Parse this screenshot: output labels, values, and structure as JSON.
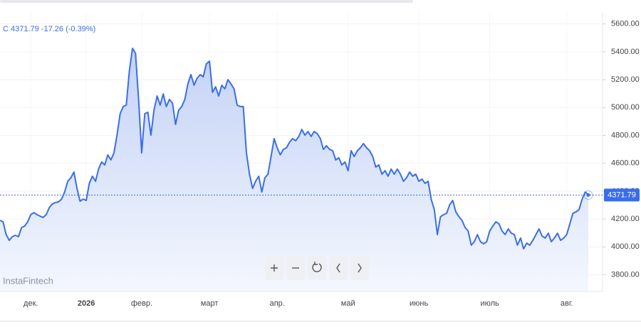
{
  "chart_data": {
    "type": "area",
    "header": {
      "symbol": "C",
      "price": "4371.79",
      "change": "-17.26 (-0.39%)"
    },
    "watermark": "InstaFintech",
    "color": "#3a6ee8",
    "xlim": [
      0,
      191
    ],
    "xticks": [
      {
        "value": 10,
        "label": "дек."
      },
      {
        "value": 28,
        "label": "2026"
      },
      {
        "value": 46,
        "label": "февр."
      },
      {
        "value": 68,
        "label": "март"
      },
      {
        "value": 90,
        "label": "апр."
      },
      {
        "value": 113,
        "label": "май"
      },
      {
        "value": 136,
        "label": "июнь"
      },
      {
        "value": 159,
        "label": "июль"
      },
      {
        "value": 184,
        "label": "авг."
      }
    ],
    "ylim": [
      3680,
      5680
    ],
    "yticks": [
      {
        "value": 3800,
        "label": "3800.00"
      },
      {
        "value": 4000,
        "label": "4000.00"
      },
      {
        "value": 4200,
        "label": "4200.00"
      },
      {
        "value": 4400,
        "label": "4400.00"
      },
      {
        "value": 4600,
        "label": "4600.00"
      },
      {
        "value": 4800,
        "label": "4800.00"
      },
      {
        "value": 5000,
        "label": "5000.00"
      },
      {
        "value": 5200,
        "label": "5200.00"
      },
      {
        "value": 5400,
        "label": "5400.00"
      },
      {
        "value": 5600,
        "label": "5600.00"
      }
    ],
    "grid": true,
    "values": [
      4190,
      4180,
      4088,
      4047,
      4073,
      4083,
      4073,
      4139,
      4149,
      4180,
      4231,
      4246,
      4231,
      4221,
      4211,
      4231,
      4282,
      4308,
      4318,
      4323,
      4343,
      4394,
      4471,
      4496,
      4537,
      4420,
      4328,
      4343,
      4333,
      4456,
      4507,
      4471,
      4558,
      4609,
      4588,
      4660,
      4624,
      4675,
      4802,
      4956,
      5007,
      5017,
      5262,
      5425,
      5389,
      5058,
      4675,
      4956,
      4966,
      4802,
      4981,
      5083,
      5017,
      5098,
      5007,
      5058,
      5032,
      4879,
      4981,
      5007,
      5058,
      5170,
      5236,
      5160,
      5211,
      5236,
      5221,
      5313,
      5333,
      5109,
      5149,
      5083,
      5160,
      5134,
      5200,
      5170,
      5134,
      5017,
      5007,
      5007,
      4675,
      4522,
      4420,
      4471,
      4507,
      4394,
      4496,
      4522,
      4649,
      4777,
      4711,
      4660,
      4700,
      4711,
      4751,
      4777,
      4762,
      4792,
      4843,
      4802,
      4828,
      4792,
      4828,
      4813,
      4777,
      4700,
      4726,
      4700,
      4690,
      4624,
      4639,
      4588,
      4609,
      4547,
      4690,
      4649,
      4690,
      4711,
      4741,
      4711,
      4690,
      4649,
      4573,
      4588,
      4522,
      4547,
      4507,
      4558,
      4522,
      4558,
      4522,
      4471,
      4496,
      4537,
      4507,
      4522,
      4471,
      4486,
      4456,
      4471,
      4343,
      4267,
      4088,
      4216,
      4231,
      4241,
      4302,
      4333,
      4251,
      4216,
      4190,
      4139,
      4114,
      4012,
      4037,
      4088,
      4037,
      4022,
      4037,
      4114,
      4149,
      4180,
      4165,
      4114,
      4088,
      4129,
      4098,
      4088,
      4012,
      4063,
      3986,
      4027,
      4012,
      4047,
      4088,
      4129,
      4078,
      4063,
      4098,
      4037,
      4063,
      4098,
      4047,
      4063,
      4088,
      4165,
      4241,
      4251,
      4267,
      4343,
      4394,
      4371.79
    ]
  }
}
